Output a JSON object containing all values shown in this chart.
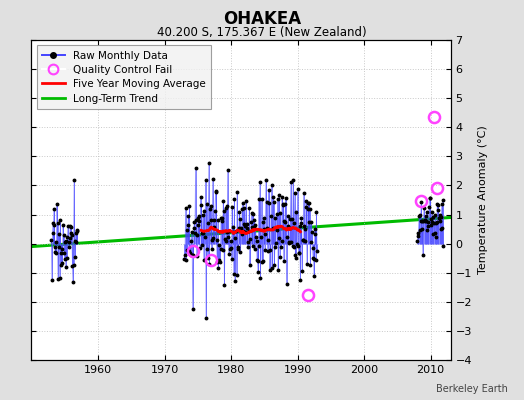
{
  "title": "OHAKEA",
  "subtitle": "40.200 S, 175.367 E (New Zealand)",
  "ylabel": "Temperature Anomaly (°C)",
  "watermark": "Berkeley Earth",
  "ylim": [
    -4,
    7
  ],
  "xlim": [
    1950,
    2013
  ],
  "yticks": [
    -4,
    -3,
    -2,
    -1,
    0,
    1,
    2,
    3,
    4,
    5,
    6,
    7
  ],
  "xticks": [
    1960,
    1970,
    1980,
    1990,
    2000,
    2010
  ],
  "early_period": {
    "start": 1953,
    "end": 1957
  },
  "main_period": {
    "start": 1973,
    "end": 1993
  },
  "late_period": {
    "start": 2008,
    "end": 2012
  },
  "trend": {
    "x": [
      1950,
      2013
    ],
    "y": [
      -0.1,
      0.9
    ]
  },
  "qc_fail_positions": [
    {
      "year": 1974.25,
      "value": -0.25
    },
    {
      "year": 1977.0,
      "value": -0.55
    },
    {
      "year": 1991.5,
      "value": -1.75
    },
    {
      "year": 2008.5,
      "value": 1.45
    },
    {
      "year": 2010.5,
      "value": 4.35
    },
    {
      "year": 2011.0,
      "value": 1.9
    }
  ],
  "colors": {
    "raw_line": "#4444ff",
    "raw_dot": "#000000",
    "qc_fail": "#ff44ff",
    "moving_avg": "#ff0000",
    "trend": "#00bb00",
    "background": "#e0e0e0",
    "plot_bg": "#ffffff",
    "grid": "#bbbbbb"
  },
  "legend": {
    "raw": "Raw Monthly Data",
    "qc": "Quality Control Fail",
    "avg": "Five Year Moving Average",
    "trend": "Long-Term Trend"
  },
  "noise_seed": 17,
  "early_noise": 0.65,
  "main_noise": 0.85,
  "late_noise": 0.45
}
